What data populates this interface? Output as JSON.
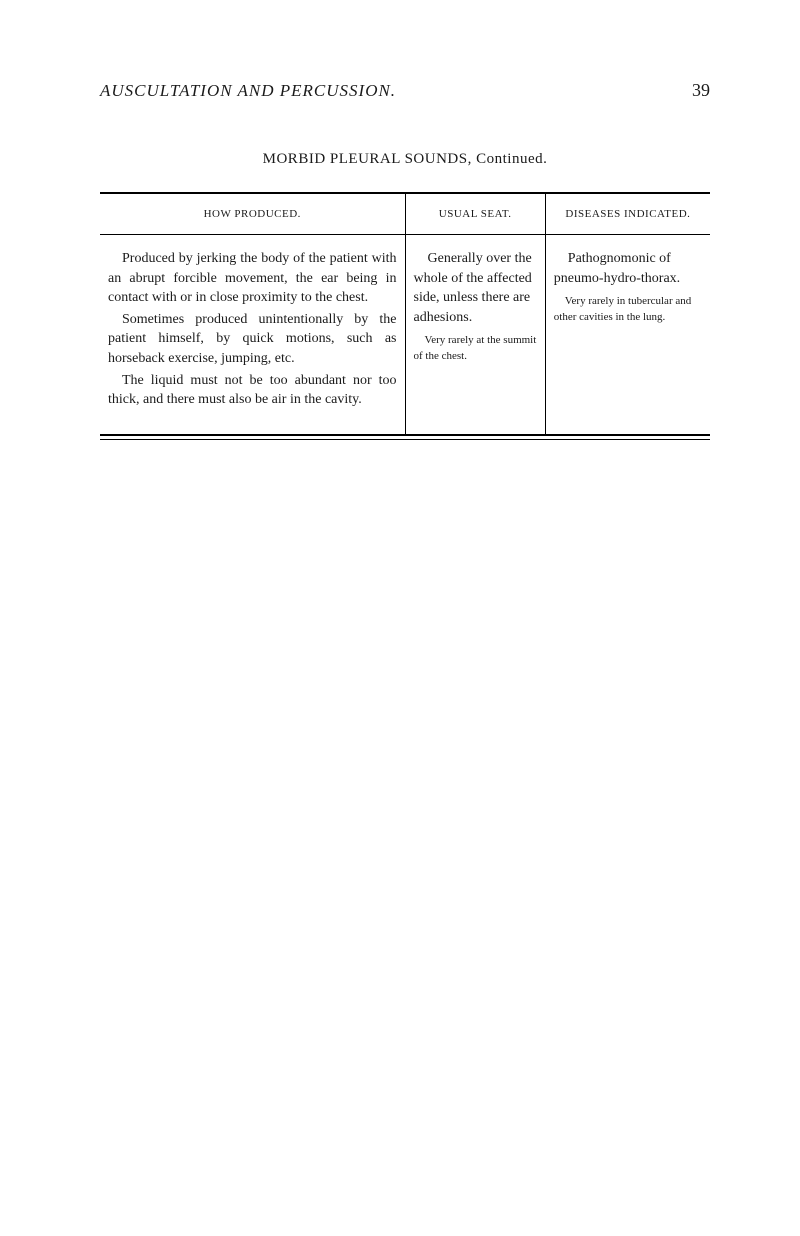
{
  "header": {
    "title": "AUSCULTATION AND PERCUSSION.",
    "page_number": "39"
  },
  "subtitle": "MORBID PLEURAL SOUNDS, Continued.",
  "table": {
    "columns": [
      {
        "label": "HOW PRODUCED."
      },
      {
        "label": "USUAL SEAT."
      },
      {
        "label": "DISEASES INDICATED."
      }
    ],
    "rows": [
      {
        "how": {
          "paras": [
            "Produced by jerking the body of the patient with an abrupt forcible movement, the ear being in contact with or in close proximity to the chest.",
            "Sometimes produced unintentionally by the patient himself, by quick motions, such as horseback exercise, jumping, etc.",
            "The liquid must not be too abundant nor too thick, and there must also be air in the cavity."
          ]
        },
        "usual": {
          "para": "Generally over the whole of the affected side, unless there are adhesions.",
          "note": "Very rarely at the summit of the chest."
        },
        "diseases": {
          "para": "Pathognomonic of pneumo-hydro-thorax.",
          "note": "Very rarely in tubercular and other cavities in the lung."
        }
      }
    ]
  }
}
